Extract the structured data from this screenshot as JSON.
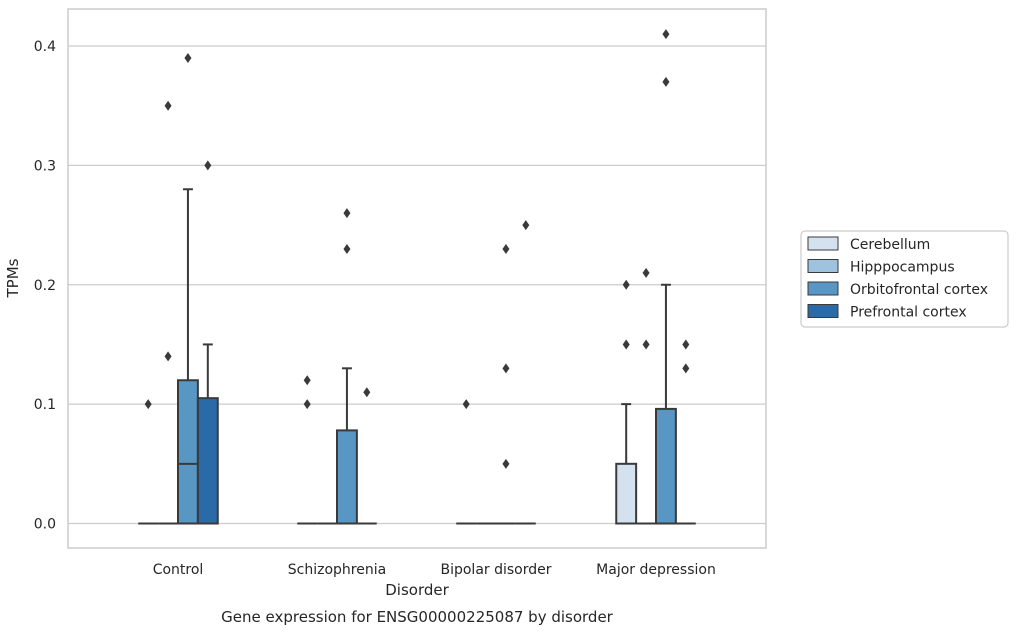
{
  "chart_data": {
    "type": "box",
    "caption": "Gene expression for ENSG00000225087 by disorder",
    "xlabel": "Disorder",
    "ylabel": "TPMs",
    "ylim": [
      -0.02,
      0.43
    ],
    "yticks": [
      0.0,
      0.1,
      0.2,
      0.3,
      0.4
    ],
    "ytick_labels": [
      "0.0",
      "0.1",
      "0.2",
      "0.3",
      "0.4"
    ],
    "grid": "horizontal",
    "legend_position": "right",
    "categories": [
      "Control",
      "Schizophrenia",
      "Bipolar disorder",
      "Major depression"
    ],
    "series": [
      {
        "name": "Cerebellum",
        "color": "#d4e2f0",
        "boxes": [
          {
            "q1": 0,
            "median": 0,
            "q3": 0,
            "whislo": 0,
            "whishi": 0,
            "fliers": [
              0.1
            ]
          },
          {
            "q1": 0,
            "median": 0,
            "q3": 0,
            "whislo": 0,
            "whishi": 0,
            "fliers": [
              0.1,
              0.12
            ]
          },
          {
            "q1": 0,
            "median": 0,
            "q3": 0,
            "whislo": 0,
            "whishi": 0,
            "fliers": [
              0.1
            ]
          },
          {
            "q1": 0,
            "median": 0,
            "q3": 0.05,
            "whislo": 0,
            "whishi": 0.1,
            "fliers": [
              0.15,
              0.2
            ]
          }
        ]
      },
      {
        "name": "Hipppocampus",
        "color": "#9fc3de",
        "boxes": [
          {
            "q1": 0,
            "median": 0,
            "q3": 0,
            "whislo": 0,
            "whishi": 0,
            "fliers": [
              0.14,
              0.35
            ]
          },
          {
            "q1": 0,
            "median": 0,
            "q3": 0,
            "whislo": 0,
            "whishi": 0,
            "fliers": []
          },
          {
            "q1": 0,
            "median": 0,
            "q3": 0,
            "whislo": 0,
            "whishi": 0,
            "fliers": []
          },
          {
            "q1": 0,
            "median": 0,
            "q3": 0,
            "whislo": 0,
            "whishi": 0,
            "fliers": [
              0.15,
              0.21
            ]
          }
        ]
      },
      {
        "name": "Orbitofrontal cortex",
        "color": "#5896c4",
        "boxes": [
          {
            "q1": 0,
            "median": 0.05,
            "q3": 0.12,
            "whislo": 0,
            "whishi": 0.28,
            "fliers": [
              0.39
            ]
          },
          {
            "q1": 0,
            "median": 0,
            "q3": 0.078,
            "whislo": 0,
            "whishi": 0.13,
            "fliers": [
              0.23,
              0.26
            ]
          },
          {
            "q1": 0,
            "median": 0,
            "q3": 0,
            "whislo": 0,
            "whishi": 0,
            "fliers": [
              0.05,
              0.13,
              0.23
            ]
          },
          {
            "q1": 0,
            "median": 0,
            "q3": 0.096,
            "whislo": 0,
            "whishi": 0.2,
            "fliers": [
              0.37,
              0.41
            ]
          }
        ]
      },
      {
        "name": "Prefrontal cortex",
        "color": "#2a6ba7",
        "boxes": [
          {
            "q1": 0,
            "median": 0,
            "q3": 0.105,
            "whislo": 0,
            "whishi": 0.15,
            "fliers": [
              0.3
            ]
          },
          {
            "q1": 0,
            "median": 0,
            "q3": 0,
            "whislo": 0,
            "whishi": 0,
            "fliers": [
              0.11
            ]
          },
          {
            "q1": 0,
            "median": 0,
            "q3": 0,
            "whislo": 0,
            "whishi": 0,
            "fliers": [
              0.25
            ]
          },
          {
            "q1": 0,
            "median": 0,
            "q3": 0,
            "whislo": 0,
            "whishi": 0,
            "fliers": [
              0.13,
              0.15
            ]
          }
        ]
      }
    ]
  }
}
